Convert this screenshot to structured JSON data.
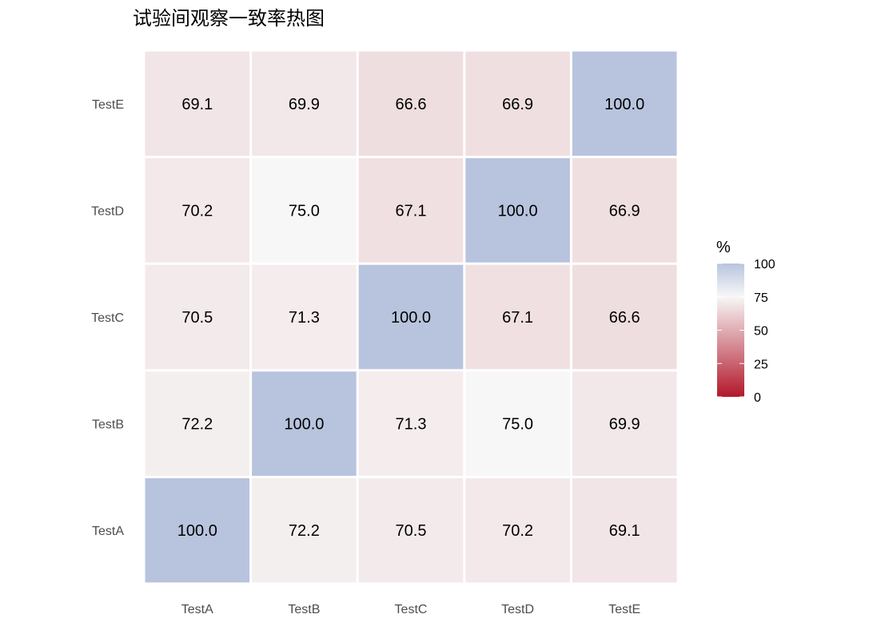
{
  "chart_data": {
    "type": "heatmap",
    "title": "试验间观察一致率热图",
    "xlabel": "",
    "ylabel": "",
    "x_categories": [
      "TestA",
      "TestB",
      "TestC",
      "TestD",
      "TestE"
    ],
    "y_categories": [
      "TestA",
      "TestB",
      "TestC",
      "TestD",
      "TestE"
    ],
    "values": [
      [
        100.0,
        72.2,
        70.5,
        70.2,
        69.1
      ],
      [
        72.2,
        100.0,
        71.3,
        75.0,
        69.9
      ],
      [
        70.5,
        71.3,
        100.0,
        67.1,
        66.6
      ],
      [
        70.2,
        75.0,
        67.1,
        100.0,
        66.9
      ],
      [
        69.1,
        69.9,
        66.6,
        66.9,
        100.0
      ]
    ],
    "colorbar": {
      "title": "%",
      "limits": [
        0,
        100
      ],
      "ticks": [
        "0",
        "25",
        "50",
        "75",
        "100"
      ],
      "low_color": "#b2182b",
      "mid_color": "#f7f7f7",
      "midpoint": 75,
      "high_color": "#b8c4de"
    },
    "grid": false,
    "legend_position": "right"
  }
}
